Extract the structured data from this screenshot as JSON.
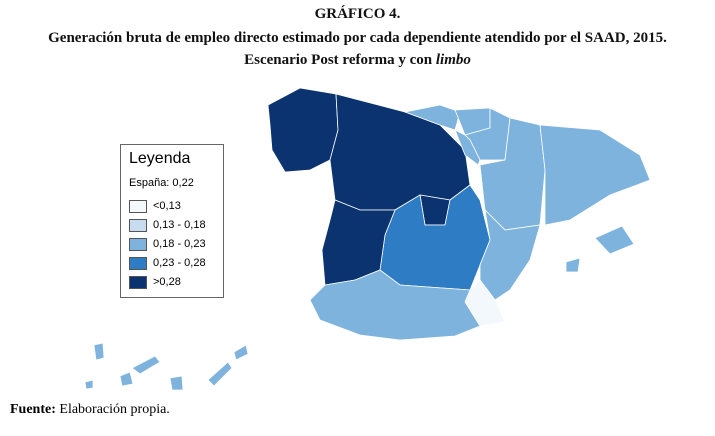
{
  "header": {
    "label": "GRÁFICO 4.",
    "title": "Generación bruta de empleo directo estimado por cada dependiente atendido por el SAAD, 2015.",
    "subtitle": "Escenario Post reforma y con",
    "subtitle_italic": "limbo"
  },
  "legend": {
    "title": "Leyenda",
    "note": "España: 0,22",
    "classes": [
      {
        "label": "<0,13",
        "color": "#f3f8fd"
      },
      {
        "label": "0,13 - 0,18",
        "color": "#c8dcf0"
      },
      {
        "label": "0,18 - 0,23",
        "color": "#7eb3dd"
      },
      {
        "label": "0,23 - 0,28",
        "color": "#2e7cc4"
      },
      {
        "label": ">0,28",
        "color": "#0a3370"
      }
    ]
  },
  "footer": {
    "source_label": "Fuente:",
    "source_text": "Elaboración propia."
  }
}
